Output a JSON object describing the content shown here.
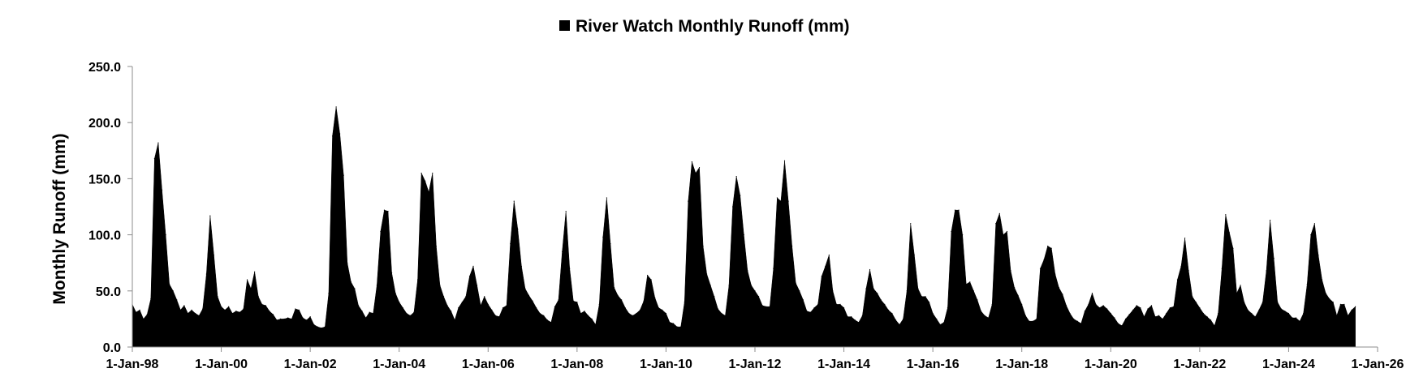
{
  "chart_data": {
    "type": "area",
    "title": "",
    "xlabel": "",
    "ylabel": "Monthly Runoff (mm)",
    "ylim": [
      0,
      250
    ],
    "y_ticks": [
      "0.0",
      "50.0",
      "100.0",
      "150.0",
      "200.0",
      "250.0"
    ],
    "x_tick_labels": [
      "1-Jan-98",
      "1-Jan-00",
      "1-Jan-02",
      "1-Jan-04",
      "1-Jan-06",
      "1-Jan-08",
      "1-Jan-10",
      "1-Jan-12",
      "1-Jan-14",
      "1-Jan-16",
      "1-Jan-18",
      "1-Jan-20",
      "1-Jan-22",
      "1-Jan-24",
      "1-Jan-26"
    ],
    "xlim": [
      "1998-01",
      "2026-01"
    ],
    "grid": false,
    "legend": "top-center",
    "series": [
      {
        "name": "River Watch Monthly Runoff (mm)",
        "color": "#000000",
        "start": "1998-01",
        "frequency": "monthly",
        "values": [
          38,
          31,
          33,
          25,
          29,
          43,
          168,
          182,
          140,
          100,
          56,
          50,
          42,
          33,
          37,
          30,
          33,
          30,
          28,
          34,
          65,
          117,
          82,
          45,
          36,
          33,
          36,
          30,
          32,
          31,
          34,
          60,
          52,
          67,
          45,
          38,
          37,
          32,
          29,
          24,
          25,
          25,
          26,
          25,
          34,
          33,
          26,
          24,
          27,
          20,
          18,
          17,
          18,
          48,
          188,
          214,
          190,
          153,
          75,
          58,
          52,
          37,
          32,
          26,
          31,
          30,
          55,
          103,
          122,
          121,
          66,
          48,
          40,
          35,
          30,
          28,
          31,
          60,
          155,
          148,
          138,
          155,
          90,
          55,
          45,
          37,
          32,
          24,
          35,
          40,
          45,
          63,
          72,
          55,
          37,
          45,
          38,
          33,
          28,
          27,
          35,
          37,
          92,
          130,
          105,
          72,
          52,
          46,
          41,
          35,
          30,
          28,
          24,
          22,
          36,
          42,
          85,
          121,
          70,
          41,
          40,
          30,
          32,
          28,
          25,
          20,
          38,
          98,
          133,
          92,
          53,
          46,
          42,
          35,
          30,
          28,
          30,
          33,
          41,
          64,
          60,
          44,
          35,
          33,
          30,
          22,
          21,
          18,
          18,
          40,
          130,
          165,
          155,
          160,
          90,
          65,
          55,
          45,
          34,
          30,
          28,
          55,
          125,
          152,
          135,
          100,
          68,
          55,
          50,
          45,
          37,
          36,
          36,
          70,
          133,
          130,
          166,
          130,
          90,
          57,
          50,
          42,
          32,
          31,
          35,
          38,
          63,
          72,
          82,
          50,
          38,
          38,
          35,
          27,
          27,
          24,
          22,
          28,
          52,
          69,
          52,
          48,
          42,
          38,
          33,
          30,
          24,
          20,
          25,
          50,
          110,
          82,
          52,
          45,
          45,
          40,
          30,
          25,
          20,
          22,
          35,
          103,
          122,
          122,
          100,
          56,
          58,
          50,
          42,
          32,
          28,
          26,
          38,
          110,
          119,
          100,
          103,
          68,
          53,
          46,
          38,
          28,
          23,
          23,
          25,
          70,
          78,
          90,
          88,
          65,
          53,
          47,
          37,
          30,
          25,
          23,
          21,
          32,
          38,
          48,
          38,
          35,
          37,
          34,
          30,
          26,
          21,
          19,
          25,
          29,
          33,
          37,
          35,
          27,
          34,
          37,
          27,
          28,
          25,
          30,
          35,
          36,
          60,
          72,
          97,
          68,
          45,
          40,
          35,
          30,
          27,
          24,
          19,
          30,
          70,
          118,
          102,
          88,
          48,
          55,
          40,
          33,
          30,
          27,
          33,
          40,
          68,
          113,
          79,
          40,
          34,
          32,
          30,
          26,
          26,
          23,
          30,
          56,
          100,
          110,
          82,
          60,
          48,
          43,
          40,
          28,
          38,
          38,
          28,
          33,
          36
        ]
      }
    ]
  }
}
